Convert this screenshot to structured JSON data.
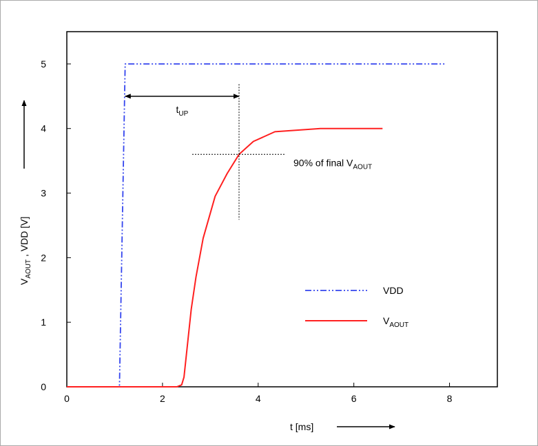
{
  "chart_data": {
    "type": "line",
    "xlabel": "t [ms]",
    "ylabel": {
      "main": "V",
      "sub": "AOUT",
      "rest": " , VDD [V]"
    },
    "xlim": [
      0,
      9
    ],
    "ylim": [
      0,
      5.5
    ],
    "xticks": [
      {
        "value": 0,
        "label": "0"
      },
      {
        "value": 2,
        "label": "2"
      },
      {
        "value": 4,
        "label": "4"
      },
      {
        "value": 6,
        "label": "6"
      },
      {
        "value": 8,
        "label": "8"
      }
    ],
    "yticks": [
      {
        "value": 0,
        "label": "0"
      },
      {
        "value": 1,
        "label": "1"
      },
      {
        "value": 2,
        "label": "2"
      },
      {
        "value": 3,
        "label": "3"
      },
      {
        "value": 4,
        "label": "4"
      },
      {
        "value": 5,
        "label": "5"
      }
    ],
    "grid": false,
    "legend_position": "bottom-right",
    "series": [
      {
        "name": "VDD",
        "color": "#3344ee",
        "style": "dash-dot",
        "x": [
          0,
          1.1,
          1.22,
          7.9
        ],
        "y": [
          0,
          0,
          5.0,
          5.0
        ]
      },
      {
        "name": {
          "main": "V",
          "sub": "AOUT"
        },
        "color": "#ff1f1f",
        "style": "solid",
        "x": [
          0,
          2.3,
          2.4,
          2.45,
          2.5,
          2.6,
          2.7,
          2.85,
          3.1,
          3.35,
          3.6,
          3.9,
          4.35,
          5.3,
          6.6
        ],
        "y": [
          0,
          0,
          0.03,
          0.15,
          0.5,
          1.2,
          1.7,
          2.3,
          2.95,
          3.3,
          3.6,
          3.8,
          3.95,
          4.0,
          4.0
        ]
      }
    ],
    "annotations": {
      "t_up": {
        "main": "t",
        "sub": "UP",
        "from_x": 1.22,
        "to_x": 3.6,
        "y": 4.5
      },
      "crosshair": {
        "x": 3.6,
        "y": 3.6
      },
      "label_90": {
        "main": "90% of final V",
        "sub": "AOUT"
      }
    }
  }
}
